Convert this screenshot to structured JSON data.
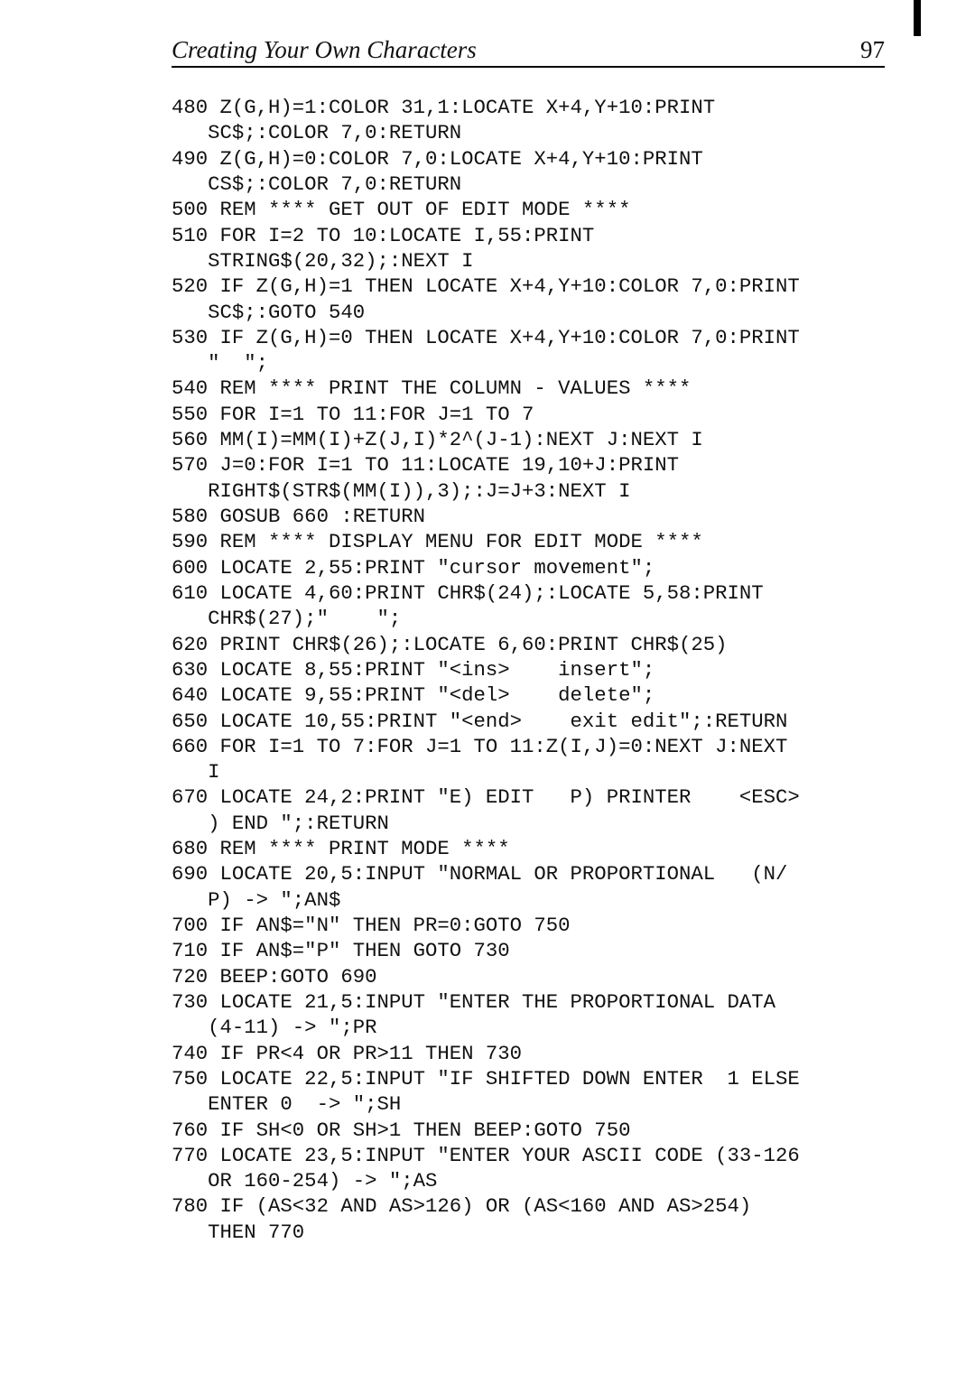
{
  "header": {
    "title": "Creating Your Own Characters",
    "page_number": "97"
  },
  "code": {
    "text": "480 Z(G,H)=1:COLOR 31,1:LOCATE X+4,Y+10:PRINT\n   SC$;:COLOR 7,0:RETURN\n490 Z(G,H)=0:COLOR 7,0:LOCATE X+4,Y+10:PRINT\n   CS$;:COLOR 7,0:RETURN\n500 REM **** GET OUT OF EDIT MODE ****\n510 FOR I=2 TO 10:LOCATE I,55:PRINT\n   STRING$(20,32);:NEXT I\n520 IF Z(G,H)=1 THEN LOCATE X+4,Y+10:COLOR 7,0:PRINT\n   SC$;:GOTO 540\n530 IF Z(G,H)=0 THEN LOCATE X+4,Y+10:COLOR 7,0:PRINT\n   \"  \";\n540 REM **** PRINT THE COLUMN - VALUES ****\n550 FOR I=1 TO 11:FOR J=1 TO 7\n560 MM(I)=MM(I)+Z(J,I)*2^(J-1):NEXT J:NEXT I\n570 J=0:FOR I=1 TO 11:LOCATE 19,10+J:PRINT\n   RIGHT$(STR$(MM(I)),3);:J=J+3:NEXT I\n580 GOSUB 660 :RETURN\n590 REM **** DISPLAY MENU FOR EDIT MODE ****\n600 LOCATE 2,55:PRINT \"cursor movement\";\n610 LOCATE 4,60:PRINT CHR$(24);:LOCATE 5,58:PRINT\n   CHR$(27);\"    \";\n620 PRINT CHR$(26);:LOCATE 6,60:PRINT CHR$(25)\n630 LOCATE 8,55:PRINT \"<ins>    insert\";\n640 LOCATE 9,55:PRINT \"<del>    delete\";\n650 LOCATE 10,55:PRINT \"<end>    exit edit\";:RETURN\n660 FOR I=1 TO 7:FOR J=1 TO 11:Z(I,J)=0:NEXT J:NEXT\n   I\n670 LOCATE 24,2:PRINT \"E) EDIT   P) PRINTER    <ESC>\n   ) END \";:RETURN\n680 REM **** PRINT MODE ****\n690 LOCATE 20,5:INPUT \"NORMAL OR PROPORTIONAL   (N/\n   P) -> \";AN$\n700 IF AN$=\"N\" THEN PR=0:GOTO 750\n710 IF AN$=\"P\" THEN GOTO 730\n720 BEEP:GOTO 690\n730 LOCATE 21,5:INPUT \"ENTER THE PROPORTIONAL DATA\n   (4-11) -> \";PR\n740 IF PR<4 OR PR>11 THEN 730\n750 LOCATE 22,5:INPUT \"IF SHIFTED DOWN ENTER  1 ELSE\n   ENTER 0  -> \";SH\n760 IF SH<0 OR SH>1 THEN BEEP:GOTO 750\n770 LOCATE 23,5:INPUT \"ENTER YOUR ASCII CODE (33-126\n   OR 160-254) -> \";AS\n780 IF (AS<32 AND AS>126) OR (AS<160 AND AS>254)\n   THEN 770"
  },
  "colors": {
    "background": "#ffffff",
    "text": "#111111",
    "rule": "#000000"
  }
}
